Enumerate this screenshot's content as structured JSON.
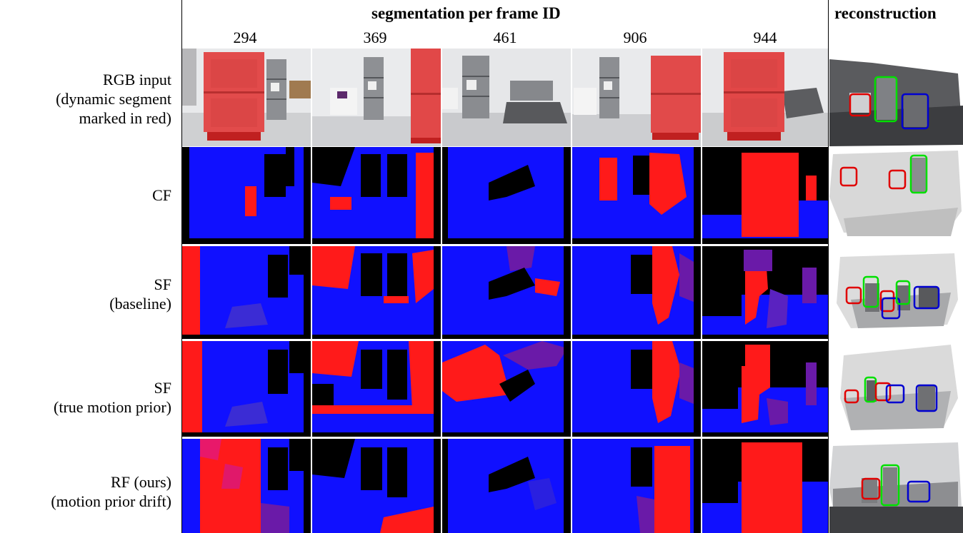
{
  "figure": {
    "header_segmentation": "segmentation per frame ID",
    "header_reconstruction": "reconstruction",
    "frame_ids": [
      "294",
      "369",
      "461",
      "906",
      "944"
    ],
    "rows": [
      {
        "line1": "RGB input",
        "line2": "(dynamic segment",
        "line3": "marked in red)"
      },
      {
        "line1": "CF",
        "line2": "",
        "line3": ""
      },
      {
        "line1": "SF",
        "line2": "(baseline)",
        "line3": ""
      },
      {
        "line1": "SF",
        "line2": "(true motion prior)",
        "line3": ""
      },
      {
        "line1": "RF (ours)",
        "line2": "(motion prior drift)",
        "line3": ""
      }
    ],
    "colors": {
      "dynamic": "#ff1a1a",
      "static": "#1010ff",
      "background": "#000000",
      "mixed": "#6a1aa8",
      "box_red": "#e00000",
      "box_green": "#00e000",
      "box_blue": "#0000d0"
    }
  }
}
